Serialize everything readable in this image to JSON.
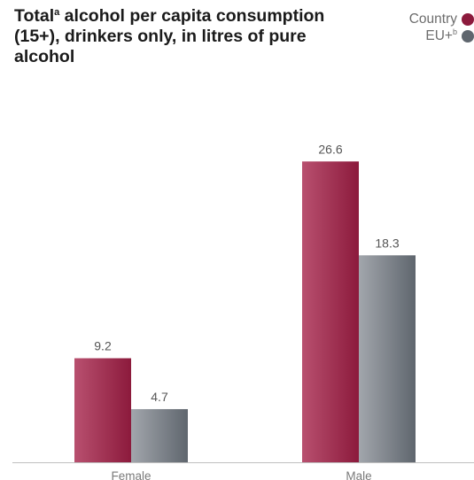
{
  "title": {
    "main": "Total",
    "superscript": "a",
    "rest": " alcohol per capita consumption (15+), drinkers only, in litres of pure alcohol"
  },
  "legend": {
    "country_label": "Country",
    "eu_label": "EU+",
    "eu_superscript": "b"
  },
  "colors": {
    "country_light": "#b8506f",
    "country_dark": "#8c1a3c",
    "eu_light": "#a2a6ac",
    "eu_dark": "#5f666e",
    "axis": "#bfbfbf",
    "label_text": "#555555",
    "category_text": "#7a7a7a"
  },
  "chart_data": {
    "type": "bar",
    "title": "Total alcohol per capita consumption (15+), drinkers only, in litres of pure alcohol",
    "categories": [
      "Female",
      "Male"
    ],
    "series": [
      {
        "name": "Country",
        "values": [
          9.2,
          26.6
        ]
      },
      {
        "name": "EU+",
        "values": [
          4.7,
          18.3
        ]
      }
    ],
    "xlabel": "",
    "ylabel": "",
    "ylim": [
      0,
      29.6
    ],
    "grid": false,
    "legend_position": "top-right",
    "data_labels": [
      "9.2",
      "26.6",
      "4.7",
      "18.3"
    ]
  }
}
